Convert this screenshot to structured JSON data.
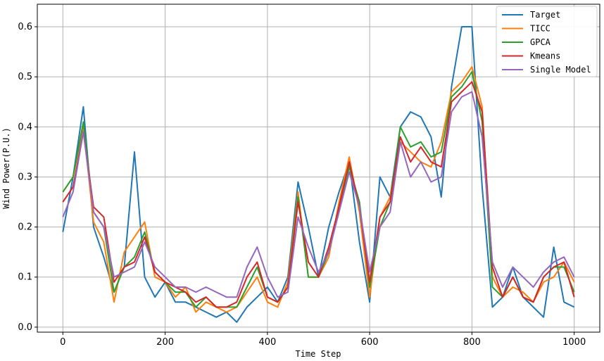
{
  "chart_data": {
    "type": "line",
    "title": "",
    "xlabel": "Time Step",
    "ylabel": "Wind Power(P.U.)",
    "xlim": [
      -50,
      1050
    ],
    "ylim": [
      -0.01,
      0.645
    ],
    "xticks": [
      0,
      200,
      400,
      600,
      800,
      1000
    ],
    "yticks": [
      0.0,
      0.1,
      0.2,
      0.3,
      0.4,
      0.5,
      0.6
    ],
    "xtick_labels": [
      "0",
      "200",
      "400",
      "600",
      "800",
      "1000"
    ],
    "ytick_labels": [
      "0.0",
      "0.1",
      "0.2",
      "0.3",
      "0.4",
      "0.5",
      "0.6"
    ],
    "grid": true,
    "legend_position": "top-right",
    "x": [
      0,
      20,
      40,
      60,
      80,
      100,
      120,
      140,
      160,
      180,
      200,
      220,
      240,
      260,
      280,
      300,
      320,
      340,
      360,
      380,
      400,
      420,
      440,
      460,
      480,
      500,
      520,
      540,
      560,
      580,
      600,
      620,
      640,
      660,
      680,
      700,
      720,
      740,
      760,
      780,
      800,
      820,
      840,
      860,
      880,
      900,
      920,
      940,
      960,
      980,
      1000
    ],
    "series": [
      {
        "name": "Target",
        "color": "#1f77b4",
        "values": [
          0.19,
          0.3,
          0.44,
          0.2,
          0.14,
          0.07,
          0.12,
          0.35,
          0.1,
          0.06,
          0.09,
          0.05,
          0.05,
          0.04,
          0.03,
          0.02,
          0.03,
          0.01,
          0.04,
          0.06,
          0.08,
          0.05,
          0.1,
          0.29,
          0.2,
          0.1,
          0.2,
          0.27,
          0.33,
          0.17,
          0.05,
          0.3,
          0.26,
          0.4,
          0.43,
          0.42,
          0.38,
          0.26,
          0.48,
          0.6,
          0.6,
          0.28,
          0.04,
          0.06,
          0.12,
          0.06,
          0.04,
          0.02,
          0.16,
          0.05,
          0.04
        ]
      },
      {
        "name": "TICC",
        "color": "#ff7f0e",
        "values": [
          0.27,
          0.3,
          0.4,
          0.21,
          0.17,
          0.05,
          0.15,
          0.18,
          0.21,
          0.1,
          0.09,
          0.06,
          0.08,
          0.03,
          0.05,
          0.04,
          0.03,
          0.04,
          0.07,
          0.1,
          0.05,
          0.04,
          0.09,
          0.27,
          0.1,
          0.1,
          0.14,
          0.25,
          0.34,
          0.23,
          0.06,
          0.22,
          0.26,
          0.37,
          0.35,
          0.33,
          0.32,
          0.37,
          0.47,
          0.49,
          0.52,
          0.44,
          0.1,
          0.06,
          0.08,
          0.07,
          0.05,
          0.09,
          0.1,
          0.13,
          0.09
        ]
      },
      {
        "name": "GPCA",
        "color": "#2ca02c",
        "values": [
          0.27,
          0.3,
          0.41,
          0.23,
          0.2,
          0.07,
          0.12,
          0.14,
          0.19,
          0.11,
          0.09,
          0.07,
          0.07,
          0.04,
          0.06,
          0.04,
          0.04,
          0.04,
          0.08,
          0.12,
          0.06,
          0.05,
          0.08,
          0.26,
          0.1,
          0.1,
          0.15,
          0.24,
          0.32,
          0.25,
          0.08,
          0.2,
          0.25,
          0.4,
          0.36,
          0.37,
          0.34,
          0.35,
          0.46,
          0.48,
          0.51,
          0.41,
          0.08,
          0.06,
          0.1,
          0.06,
          0.05,
          0.1,
          0.12,
          0.12,
          0.07
        ]
      },
      {
        "name": "Kmeans",
        "color": "#d62728",
        "values": [
          0.25,
          0.28,
          0.39,
          0.24,
          0.22,
          0.09,
          0.12,
          0.13,
          0.18,
          0.11,
          0.09,
          0.08,
          0.07,
          0.05,
          0.06,
          0.04,
          0.04,
          0.05,
          0.1,
          0.13,
          0.06,
          0.05,
          0.08,
          0.25,
          0.13,
          0.1,
          0.16,
          0.24,
          0.33,
          0.24,
          0.09,
          0.22,
          0.25,
          0.38,
          0.33,
          0.36,
          0.33,
          0.32,
          0.45,
          0.47,
          0.49,
          0.43,
          0.12,
          0.06,
          0.1,
          0.06,
          0.05,
          0.1,
          0.12,
          0.13,
          0.06
        ]
      },
      {
        "name": "Single Model",
        "color": "#9467bd",
        "values": [
          0.22,
          0.27,
          0.39,
          0.23,
          0.2,
          0.1,
          0.11,
          0.12,
          0.17,
          0.12,
          0.1,
          0.08,
          0.08,
          0.07,
          0.08,
          0.07,
          0.06,
          0.06,
          0.12,
          0.16,
          0.1,
          0.06,
          0.07,
          0.22,
          0.16,
          0.11,
          0.15,
          0.23,
          0.31,
          0.24,
          0.11,
          0.2,
          0.23,
          0.37,
          0.3,
          0.33,
          0.29,
          0.3,
          0.43,
          0.46,
          0.47,
          0.38,
          0.13,
          0.08,
          0.12,
          0.1,
          0.08,
          0.11,
          0.13,
          0.14,
          0.1
        ]
      }
    ]
  }
}
